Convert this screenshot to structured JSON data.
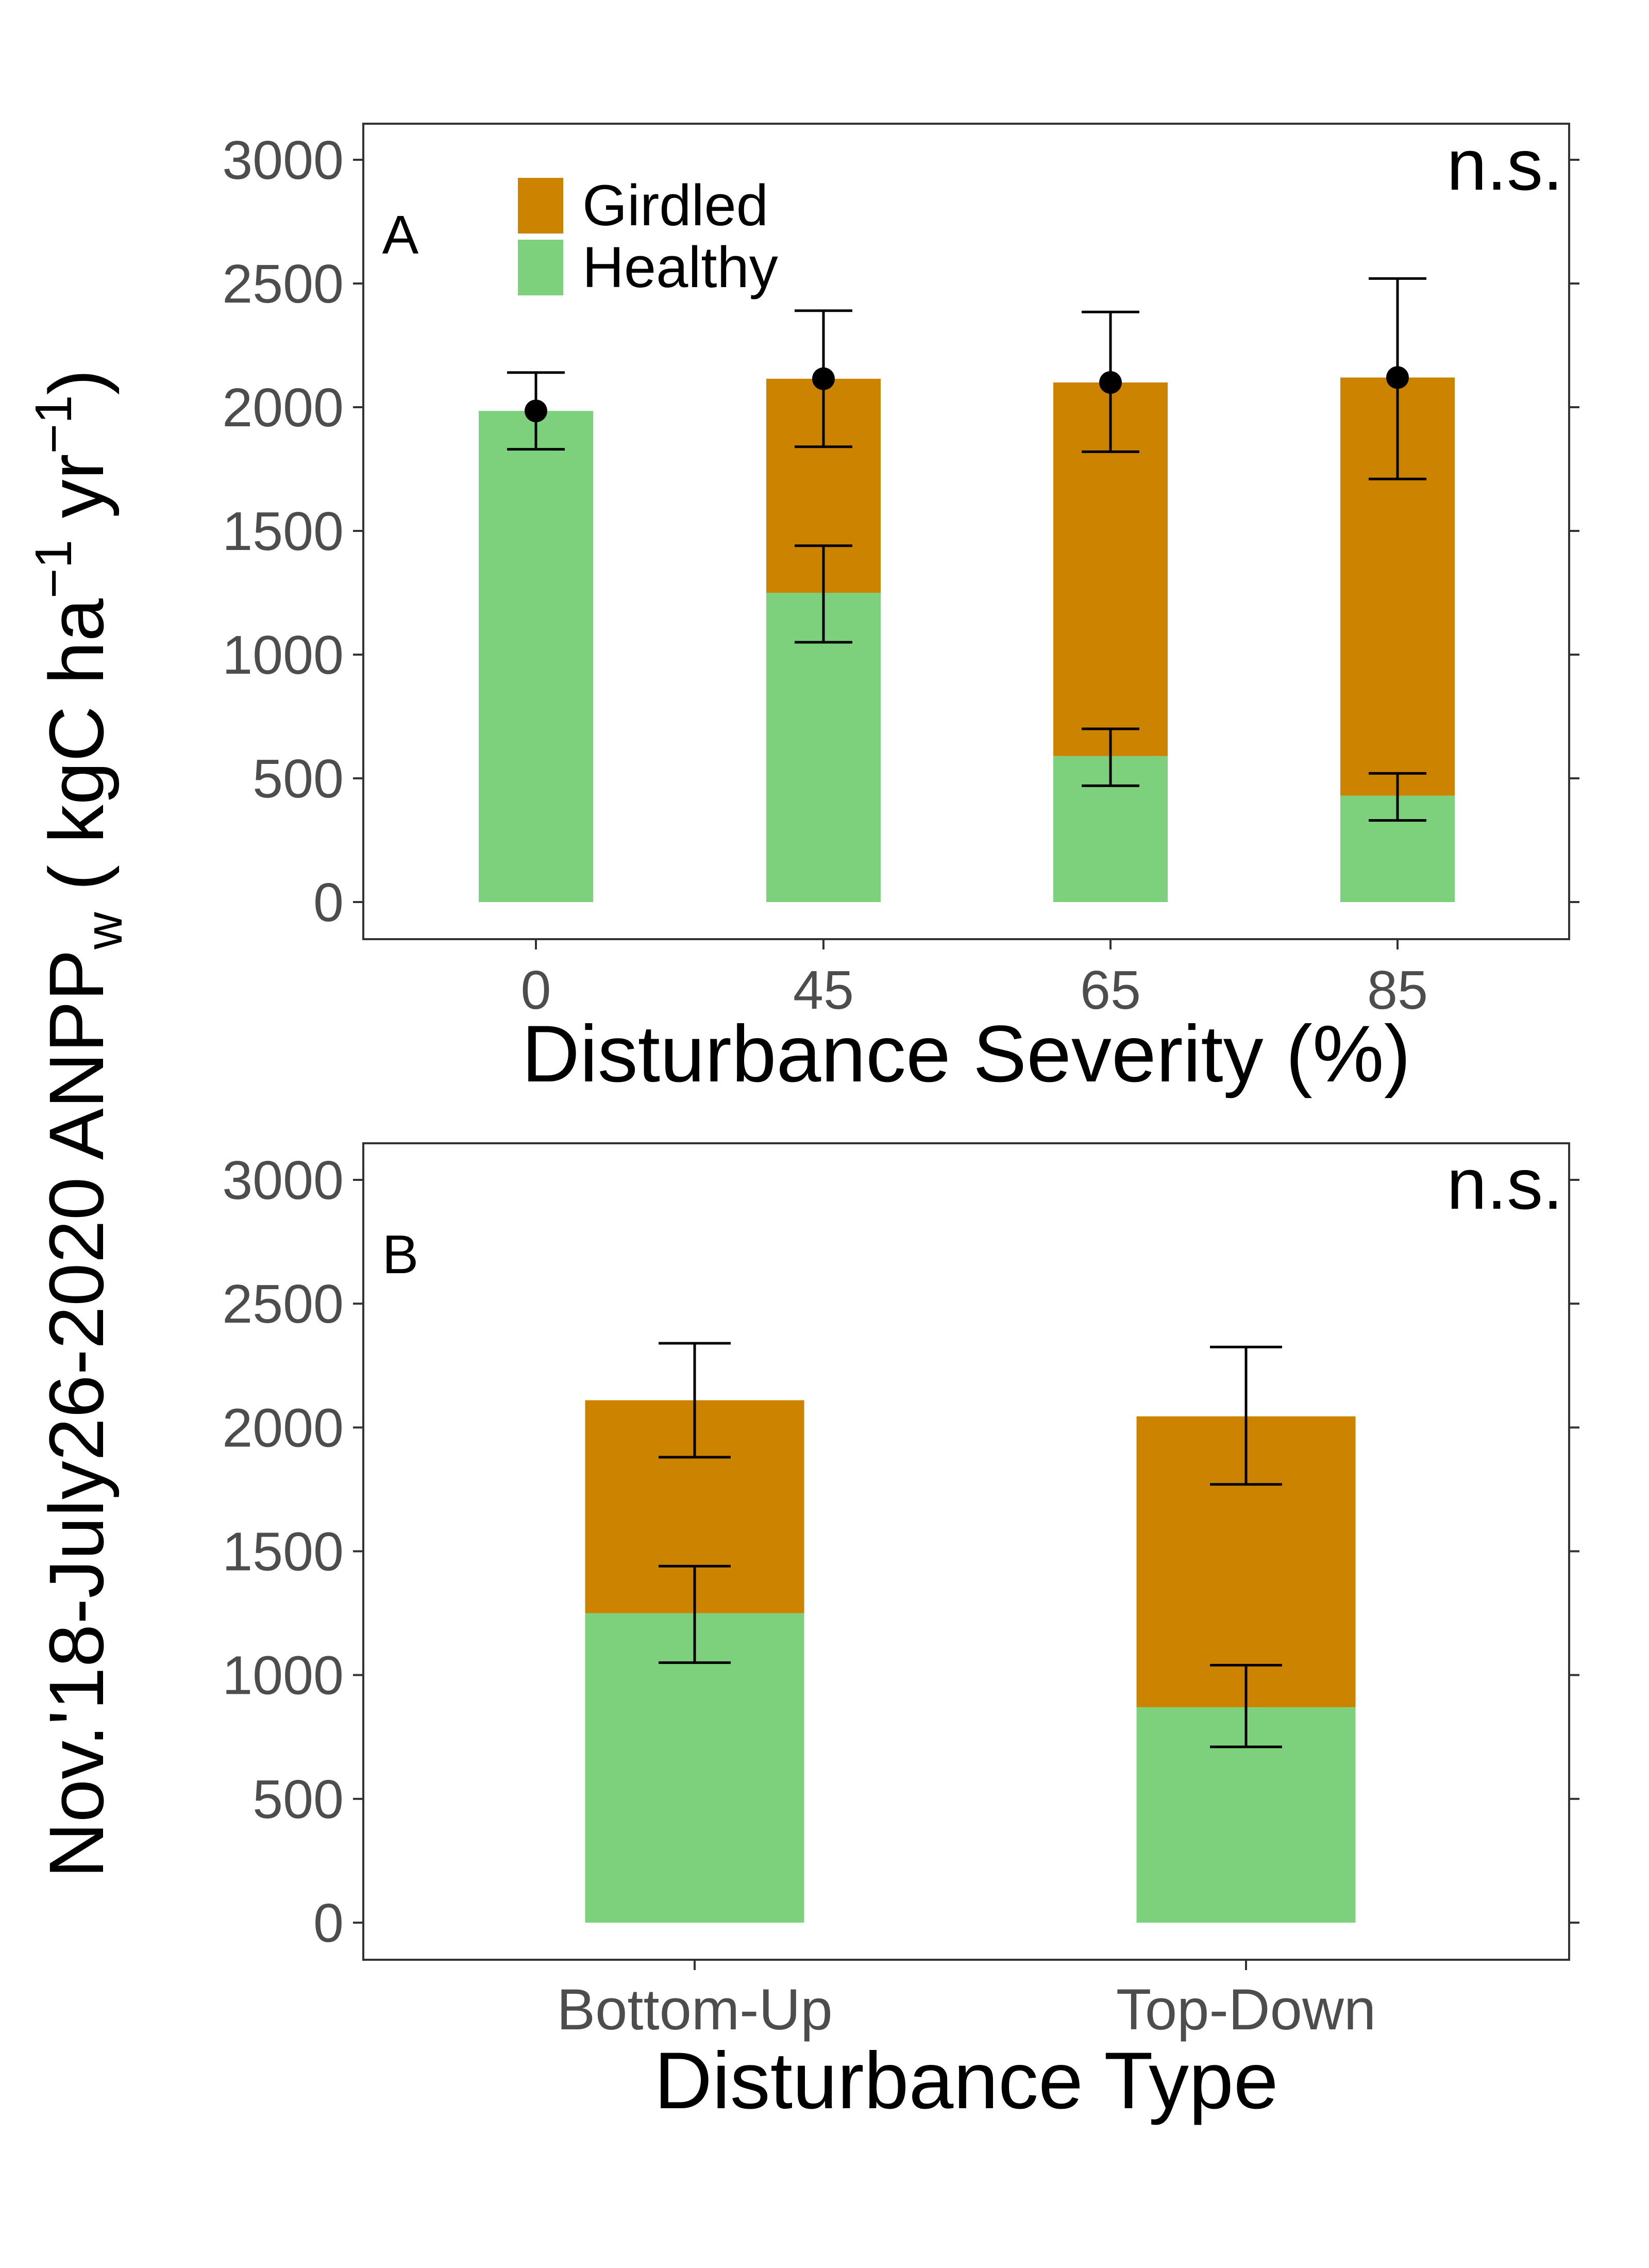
{
  "y_axis_label": {
    "prefix": "Nov.'18-July26-2020 ANPP",
    "sub": "w",
    "unit_open": " ( kgC ha",
    "exp1": "−1",
    "unit_mid": " yr",
    "exp2": "−1",
    "unit_close": ")"
  },
  "colors": {
    "girdled": "#cc8400",
    "healthy": "#7dd17d"
  },
  "legend": {
    "items": [
      "Girdled",
      "Healthy"
    ]
  },
  "chart_data": [
    {
      "panel": "A",
      "type": "bar",
      "stacked": true,
      "significance": "n.s.",
      "xlabel": "Disturbance Severity (%)",
      "ylabel": "Nov.'18-July26-2020 ANPPw ( kgC ha−1 yr−1)",
      "categories": [
        "0",
        "45",
        "65",
        "85"
      ],
      "ylim": [
        0,
        3000
      ],
      "yticks": [
        "0",
        "500",
        "1000",
        "1500",
        "2000",
        "2500",
        "3000"
      ],
      "series": [
        {
          "name": "Healthy",
          "values": [
            1985,
            1250,
            590,
            430
          ],
          "err_low": [
            1830,
            1050,
            470,
            330
          ],
          "err_high": [
            2140,
            1440,
            700,
            520
          ]
        },
        {
          "name": "Girdled",
          "values": [
            0,
            865,
            1510,
            1690
          ]
        }
      ],
      "total": {
        "values": [
          1985,
          2115,
          2100,
          2120
        ],
        "err_low": [
          1830,
          1840,
          1820,
          1710
        ],
        "err_high": [
          2140,
          2390,
          2385,
          2520
        ],
        "points": true
      },
      "legend_position": "top-left",
      "grid": false
    },
    {
      "panel": "B",
      "type": "bar",
      "stacked": true,
      "significance": "n.s.",
      "xlabel": "Disturbance Type",
      "ylabel": "Nov.'18-July26-2020 ANPPw ( kgC ha−1 yr−1)",
      "categories": [
        "Bottom-Up",
        "Top-Down"
      ],
      "ylim": [
        0,
        3000
      ],
      "yticks": [
        "0",
        "500",
        "1000",
        "1500",
        "2000",
        "2500",
        "3000"
      ],
      "series": [
        {
          "name": "Healthy",
          "values": [
            1250,
            870
          ],
          "err_low": [
            1050,
            710
          ],
          "err_high": [
            1440,
            1040
          ]
        },
        {
          "name": "Girdled",
          "values": [
            860,
            1175
          ]
        }
      ],
      "total": {
        "values": [
          2110,
          2045
        ],
        "err_low": [
          1880,
          1770
        ],
        "err_high": [
          2340,
          2325
        ],
        "points": false
      },
      "grid": false
    }
  ]
}
